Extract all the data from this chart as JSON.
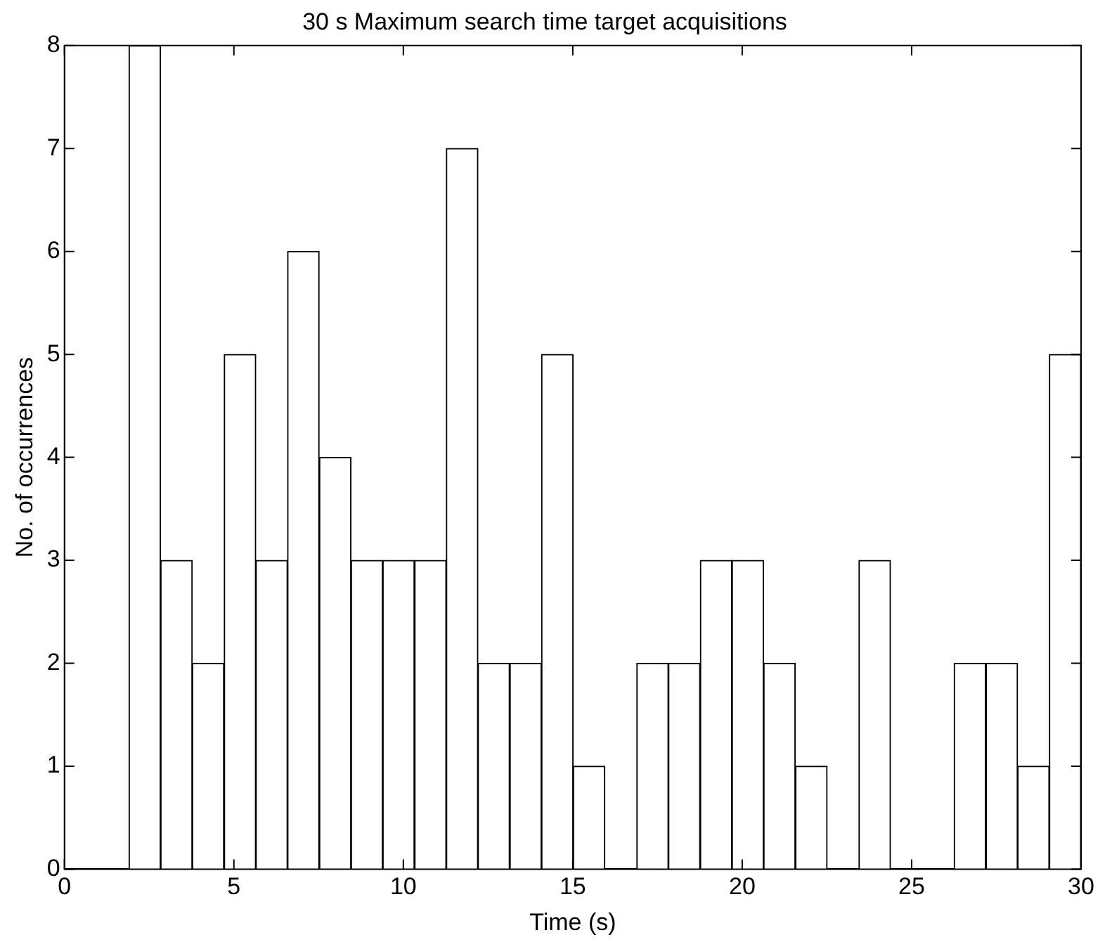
{
  "chart_data": {
    "type": "histogram",
    "title": "30 s Maximum search time target acquisitions",
    "xlabel": "Time (s)",
    "ylabel": "No. of occurrences",
    "bins": [
      1.9,
      2.84,
      3.77,
      4.71,
      5.65,
      6.58,
      7.52,
      8.46,
      9.39,
      10.33,
      11.27,
      12.2,
      13.14,
      14.08,
      15.01,
      15.95,
      16.89,
      17.82,
      18.76,
      19.7,
      20.63,
      21.57,
      22.51,
      23.44,
      24.38,
      25.32,
      26.25,
      27.19,
      28.13,
      29.06,
      30
    ],
    "values": [
      8,
      3,
      2,
      5,
      3,
      6,
      4,
      3,
      3,
      3,
      7,
      2,
      2,
      5,
      1,
      0,
      2,
      2,
      3,
      3,
      2,
      1,
      0,
      3,
      0,
      0,
      2,
      2,
      1,
      5
    ],
    "color": "#ffffff",
    "xlim": [
      0,
      30
    ],
    "xticks": [
      0,
      5,
      10,
      15,
      20,
      25,
      30
    ],
    "ylim": [
      0,
      8
    ],
    "yticks": [
      0,
      1,
      2,
      3,
      4,
      5,
      6,
      7,
      8
    ],
    "grid": false,
    "legend": false
  }
}
